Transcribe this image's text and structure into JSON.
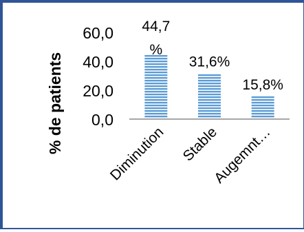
{
  "chart_data": {
    "type": "bar",
    "title": "",
    "xlabel": "",
    "ylabel": "% de patients",
    "categories": [
      "Diminution",
      "Stable",
      "Augemnt…"
    ],
    "values": [
      44.7,
      31.6,
      15.8
    ],
    "data_labels": [
      "44,7\n%",
      "31,6%",
      "15,8%"
    ],
    "y_tick_labels": [
      "0,0",
      "20,0",
      "40,0",
      "60,0"
    ],
    "y_ticks": [
      0,
      20,
      40,
      60
    ],
    "ylim": [
      0,
      60
    ],
    "grid": false,
    "legend": "none",
    "bar_color": "#5b9bd5",
    "bar_pattern": "horizontal-stripes",
    "axis_color": "#a6a6a6",
    "frame_color": "#2f5597"
  }
}
